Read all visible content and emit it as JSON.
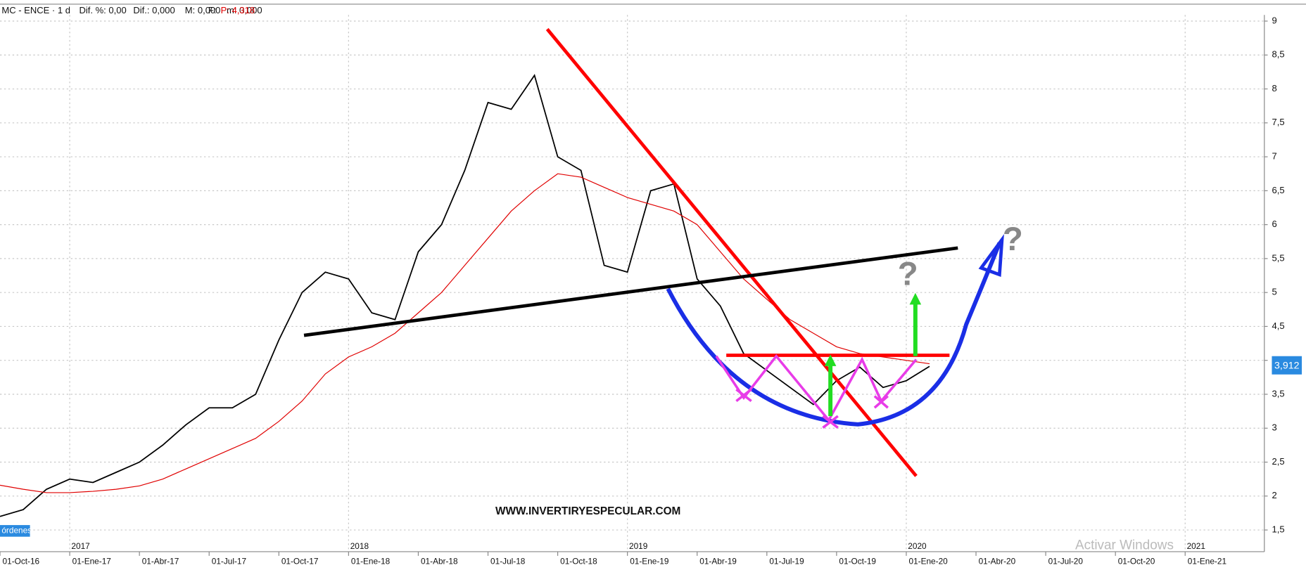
{
  "header": {
    "symbol": "MC - ENCE · 1 d",
    "fields": [
      "Dif. %: 0,00",
      "Dif.: 0,000",
      "M: 0,000",
      "m: 0,000",
      "F:"
    ],
    "price_field": "P: 4,318"
  },
  "watermark": "WWW.INVERTIRYESPECULAR.COM",
  "os_notice": "Activar Windows",
  "orders_button": "órdenes",
  "annotations": [
    "?",
    "?"
  ],
  "chart_data": {
    "type": "line",
    "x": [
      "01-Oct-16",
      "01-Nov-16",
      "01-Dic-16",
      "01-Ene-17",
      "01-Feb-17",
      "01-Mar-17",
      "01-Abr-17",
      "01-May-17",
      "01-Jun-17",
      "01-Jul-17",
      "01-Ago-17",
      "01-Sep-17",
      "01-Oct-17",
      "01-Nov-17",
      "01-Dic-17",
      "01-Ene-18",
      "01-Feb-18",
      "01-Mar-18",
      "01-Abr-18",
      "01-May-18",
      "01-Jun-18",
      "01-Jul-18",
      "01-Ago-18",
      "01-Sep-18",
      "01-Oct-18",
      "01-Nov-18",
      "01-Dic-18",
      "01-Ene-19",
      "01-Feb-19",
      "01-Mar-19",
      "01-Abr-19",
      "01-May-19",
      "01-Jun-19",
      "01-Jul-19",
      "01-Ago-19",
      "01-Sep-19",
      "01-Oct-19",
      "01-Nov-19",
      "01-Dic-19",
      "01-Ene-20",
      "01-Feb-20"
    ],
    "series": [
      {
        "name": "ENCE",
        "color": "#000000",
        "values": [
          1.7,
          1.8,
          2.1,
          2.25,
          2.2,
          2.35,
          2.5,
          2.75,
          3.05,
          3.3,
          3.3,
          3.5,
          4.3,
          5.0,
          5.3,
          5.2,
          4.7,
          4.6,
          5.6,
          6.0,
          6.8,
          7.8,
          7.7,
          8.2,
          7.0,
          6.8,
          5.4,
          5.3,
          6.5,
          6.6,
          5.2,
          4.8,
          4.1,
          3.85,
          3.6,
          3.35,
          3.7,
          3.9,
          3.6,
          3.7,
          3.912
        ]
      },
      {
        "name": "MA",
        "color": "#e00000",
        "values": [
          2.16,
          2.1,
          2.05,
          2.05,
          2.07,
          2.1,
          2.15,
          2.25,
          2.4,
          2.55,
          2.7,
          2.85,
          3.1,
          3.4,
          3.8,
          4.05,
          4.2,
          4.4,
          4.7,
          5.0,
          5.4,
          5.8,
          6.2,
          6.5,
          6.75,
          6.7,
          6.55,
          6.4,
          6.3,
          6.2,
          6.0,
          5.6,
          5.2,
          4.9,
          4.6,
          4.4,
          4.2,
          4.1,
          4.05,
          4.0,
          3.95
        ]
      }
    ],
    "last_value_label": "3,912",
    "ylim": [
      1.18,
      9.09
    ],
    "yticks": [
      {
        "value": 1.5,
        "label": "1,5"
      },
      2,
      {
        "value": 2.5,
        "label": "2,5"
      },
      3,
      {
        "value": 3.5,
        "label": "3,5"
      },
      4,
      {
        "value": 4.5,
        "label": "4,5"
      },
      5,
      {
        "value": 5.5,
        "label": "5,5"
      },
      6,
      {
        "value": 6.5,
        "label": "6,5"
      },
      7,
      {
        "value": 7.5,
        "label": "7,5"
      },
      8,
      {
        "value": 8.5,
        "label": "8,5"
      },
      9
    ],
    "xticks": [
      "01-Oct-16",
      "01-Ene-17",
      "01-Abr-17",
      "01-Jul-17",
      "01-Oct-17",
      "01-Ene-18",
      "01-Abr-18",
      "01-Jul-18",
      "01-Oct-18",
      "01-Ene-19",
      "01-Abr-19",
      "01-Jul-19",
      "01-Oct-19",
      "01-Ene-20",
      "01-Abr-20",
      "01-Jul-20",
      "01-Oct-20",
      "01-Ene-21"
    ],
    "year_labels": [
      "2017",
      "2018",
      "2019",
      "2020",
      "2021"
    ],
    "grid": true
  }
}
